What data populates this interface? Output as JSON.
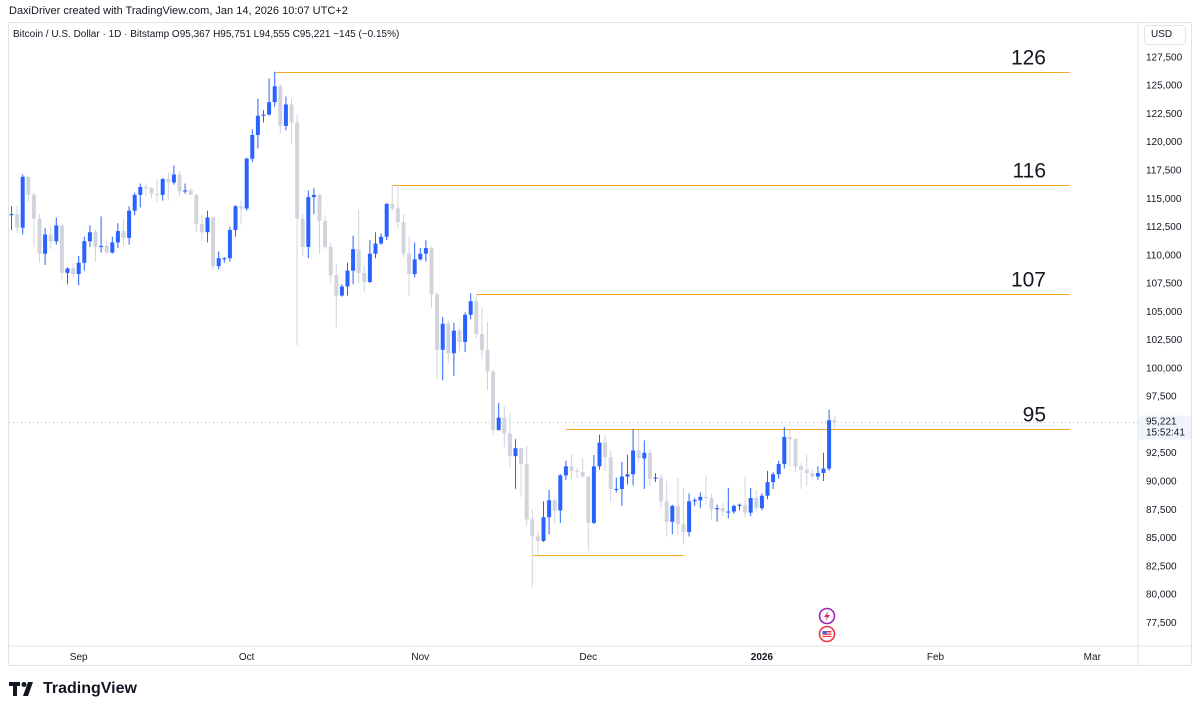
{
  "header": {
    "credit": "DaxiDriver created with TradingView.com, Jan 14, 2026 10:07 UTC+2",
    "symbol_line": "Bitcoin / U.S. Dollar · 1D · Bitstamp  O95,367  H95,751  L94,555  C95,221  −145 (−0.15%)",
    "currency": "USD"
  },
  "footer": {
    "logo_text": "TradingView",
    "logo_icon": "tradingview-logo-icon"
  },
  "price_tag": {
    "price": "95,221",
    "countdown": "15:52:41"
  },
  "colors": {
    "up": "#2962ff",
    "down": "#d1d4dc",
    "level": "#f9a825",
    "axis_tag": "#f0f3fa"
  },
  "icons": [
    "lightning-event-icon",
    "us-flag-event-icon"
  ],
  "chart_data": {
    "type": "candlestick",
    "title": "Bitcoin / U.S. Dollar · 1D · Bitstamp",
    "ylim": [
      75500,
      130500
    ],
    "y_ticks": [
      77500,
      80000,
      82500,
      85000,
      87500,
      90000,
      92500,
      95000,
      97500,
      100000,
      102500,
      105000,
      107500,
      110000,
      112500,
      115000,
      117500,
      120000,
      122500,
      125000,
      127500
    ],
    "x_ticks": [
      {
        "label": "Sep",
        "date": "2025-09-01"
      },
      {
        "label": "Oct",
        "date": "2025-10-01"
      },
      {
        "label": "Nov",
        "date": "2025-11-01"
      },
      {
        "label": "Dec",
        "date": "2025-12-01"
      },
      {
        "label": "2026",
        "date": "2026-01-01"
      },
      {
        "label": "Feb",
        "date": "2026-02-01"
      },
      {
        "label": "Mar",
        "date": "2026-03-01"
      }
    ],
    "levels": [
      {
        "label": "126",
        "value": 126200,
        "from": "2025-10-06",
        "to": "2026-02-25"
      },
      {
        "label": "116",
        "value": 116200,
        "from": "2025-10-27",
        "to": "2026-02-25"
      },
      {
        "label": "107",
        "value": 106500,
        "from": "2025-11-11",
        "to": "2026-02-25"
      },
      {
        "label": "95",
        "value": 94600,
        "from": "2025-11-27",
        "to": "2026-02-25"
      },
      {
        "label": "",
        "value": 83500,
        "from": "2025-11-21",
        "to": "2025-12-18"
      }
    ],
    "candles": [
      [
        "2025-08-20",
        113500,
        114300,
        112200,
        113600
      ],
      [
        "2025-08-21",
        113600,
        114300,
        111900,
        112400
      ],
      [
        "2025-08-22",
        112400,
        117100,
        111800,
        116900
      ],
      [
        "2025-08-23",
        116900,
        117000,
        114700,
        115300
      ],
      [
        "2025-08-24",
        115300,
        115500,
        110700,
        113200
      ],
      [
        "2025-08-25",
        113200,
        113600,
        109300,
        110100
      ],
      [
        "2025-08-26",
        110100,
        112400,
        109100,
        111800
      ],
      [
        "2025-08-27",
        111800,
        112500,
        110500,
        111200
      ],
      [
        "2025-08-28",
        111200,
        113300,
        110900,
        112600
      ],
      [
        "2025-08-29",
        112600,
        112700,
        107700,
        108400
      ],
      [
        "2025-08-30",
        108400,
        108900,
        107400,
        108800
      ],
      [
        "2025-08-31",
        108800,
        109200,
        108000,
        108300
      ],
      [
        "2025-09-01",
        108300,
        109900,
        107300,
        109300
      ],
      [
        "2025-09-02",
        109300,
        111600,
        108600,
        111200
      ],
      [
        "2025-09-03",
        111200,
        112600,
        110700,
        112000
      ],
      [
        "2025-09-04",
        112000,
        112200,
        109400,
        110700
      ],
      [
        "2025-09-05",
        110700,
        113400,
        110200,
        110800
      ],
      [
        "2025-09-06",
        110800,
        111200,
        110100,
        110200
      ],
      [
        "2025-09-07",
        110200,
        111600,
        110100,
        111100
      ],
      [
        "2025-09-08",
        111100,
        112800,
        110600,
        112100
      ],
      [
        "2025-09-09",
        112100,
        113200,
        110800,
        111500
      ],
      [
        "2025-09-10",
        111500,
        114300,
        110900,
        113900
      ],
      [
        "2025-09-11",
        113900,
        115500,
        113500,
        115300
      ],
      [
        "2025-09-12",
        115300,
        116300,
        114200,
        116000
      ],
      [
        "2025-09-13",
        116000,
        116300,
        115200,
        115900
      ],
      [
        "2025-09-14",
        115900,
        116000,
        115000,
        115400
      ],
      [
        "2025-09-15",
        115400,
        116700,
        114700,
        115300
      ],
      [
        "2025-09-16",
        115300,
        116800,
        114800,
        116700
      ],
      [
        "2025-09-17",
        116700,
        117300,
        114800,
        116400
      ],
      [
        "2025-09-18",
        116400,
        117900,
        116200,
        117100
      ],
      [
        "2025-09-19",
        117100,
        117400,
        115200,
        115600
      ],
      [
        "2025-09-20",
        115600,
        116300,
        115400,
        115700
      ],
      [
        "2025-09-21",
        115700,
        115900,
        115300,
        115300
      ],
      [
        "2025-09-22",
        115300,
        115400,
        112000,
        112700
      ],
      [
        "2025-09-23",
        112700,
        113500,
        111200,
        112000
      ],
      [
        "2025-09-24",
        112000,
        113900,
        111100,
        113300
      ],
      [
        "2025-09-25",
        113300,
        113400,
        108700,
        109000
      ],
      [
        "2025-09-26",
        109000,
        110300,
        108700,
        109700
      ],
      [
        "2025-09-27",
        109700,
        109800,
        109300,
        109700
      ],
      [
        "2025-09-28",
        109700,
        112500,
        109400,
        112200
      ],
      [
        "2025-09-29",
        112200,
        114400,
        111600,
        114300
      ],
      [
        "2025-09-30",
        114300,
        114800,
        112700,
        114100
      ],
      [
        "2025-10-01",
        114100,
        118600,
        113900,
        118500
      ],
      [
        "2025-10-02",
        118500,
        121100,
        118200,
        120600
      ],
      [
        "2025-10-03",
        120600,
        123800,
        119400,
        122300
      ],
      [
        "2025-10-04",
        122300,
        122800,
        121700,
        122400
      ],
      [
        "2025-10-05",
        122400,
        125600,
        122300,
        123500
      ],
      [
        "2025-10-06",
        123500,
        126200,
        123100,
        124900
      ],
      [
        "2025-10-07",
        124900,
        125100,
        120700,
        121400
      ],
      [
        "2025-10-08",
        121400,
        124000,
        121000,
        123300
      ],
      [
        "2025-10-09",
        123300,
        123800,
        119800,
        121700
      ],
      [
        "2025-10-10",
        121700,
        122400,
        102000,
        113200
      ],
      [
        "2025-10-11",
        113200,
        113600,
        109900,
        110700
      ],
      [
        "2025-10-12",
        110700,
        115700,
        109700,
        115100
      ],
      [
        "2025-10-13",
        115100,
        115900,
        113600,
        115300
      ],
      [
        "2025-10-14",
        115300,
        115400,
        110100,
        113000
      ],
      [
        "2025-10-15",
        113000,
        113500,
        110500,
        110700
      ],
      [
        "2025-10-16",
        110700,
        111100,
        107500,
        108200
      ],
      [
        "2025-10-17",
        108200,
        109200,
        103600,
        106400
      ],
      [
        "2025-10-18",
        106400,
        107400,
        106300,
        107200
      ],
      [
        "2025-10-19",
        107200,
        109300,
        106400,
        108600
      ],
      [
        "2025-10-20",
        108600,
        111700,
        107400,
        110500
      ],
      [
        "2025-10-21",
        110500,
        114000,
        107500,
        108400
      ],
      [
        "2025-10-22",
        108400,
        109100,
        106700,
        107600
      ],
      [
        "2025-10-23",
        107600,
        111300,
        107500,
        110100
      ],
      [
        "2025-10-24",
        110100,
        112000,
        109700,
        111000
      ],
      [
        "2025-10-25",
        111000,
        111900,
        110900,
        111600
      ],
      [
        "2025-10-26",
        111600,
        114600,
        111300,
        114500
      ],
      [
        "2025-10-27",
        114500,
        116200,
        113900,
        114100
      ],
      [
        "2025-10-28",
        114100,
        116000,
        112300,
        112900
      ],
      [
        "2025-10-29",
        112900,
        113600,
        109800,
        110100
      ],
      [
        "2025-10-30",
        110100,
        111600,
        106400,
        108300
      ],
      [
        "2025-10-31",
        108300,
        111100,
        108000,
        109600
      ],
      [
        "2025-11-01",
        109600,
        110600,
        109500,
        110100
      ],
      [
        "2025-11-02",
        110100,
        111300,
        109400,
        110600
      ],
      [
        "2025-11-03",
        110600,
        110700,
        105300,
        106500
      ],
      [
        "2025-11-04",
        106500,
        106700,
        99000,
        101600
      ],
      [
        "2025-11-05",
        101600,
        104500,
        98900,
        103900
      ],
      [
        "2025-11-06",
        103900,
        104200,
        100400,
        101300
      ],
      [
        "2025-11-07",
        101300,
        104000,
        99300,
        103300
      ],
      [
        "2025-11-08",
        103300,
        103500,
        101500,
        102300
      ],
      [
        "2025-11-09",
        102300,
        104900,
        101400,
        104700
      ],
      [
        "2025-11-10",
        104700,
        106600,
        104300,
        105900
      ],
      [
        "2025-11-11",
        105900,
        106500,
        102600,
        103000
      ],
      [
        "2025-11-12",
        103000,
        105300,
        100800,
        101600
      ],
      [
        "2025-11-13",
        101600,
        104100,
        98000,
        99700
      ],
      [
        "2025-11-14",
        99700,
        99800,
        94000,
        94500
      ],
      [
        "2025-11-15",
        94500,
        96900,
        94500,
        95600
      ],
      [
        "2025-11-16",
        95600,
        96600,
        93000,
        94200
      ],
      [
        "2025-11-17",
        94200,
        96000,
        91200,
        92200
      ],
      [
        "2025-11-18",
        92200,
        93700,
        89300,
        92900
      ],
      [
        "2025-11-19",
        92900,
        92900,
        88600,
        91500
      ],
      [
        "2025-11-20",
        91500,
        93100,
        86100,
        86600
      ],
      [
        "2025-11-21",
        86600,
        87500,
        80600,
        85100
      ],
      [
        "2025-11-22",
        85100,
        85600,
        83500,
        84700
      ],
      [
        "2025-11-23",
        84700,
        88200,
        84600,
        86800
      ],
      [
        "2025-11-24",
        86800,
        89200,
        85300,
        88300
      ],
      [
        "2025-11-25",
        88300,
        88400,
        86200,
        87400
      ],
      [
        "2025-11-26",
        87400,
        90600,
        86300,
        90500
      ],
      [
        "2025-11-27",
        90500,
        91800,
        90100,
        91300
      ],
      [
        "2025-11-28",
        91300,
        92400,
        90200,
        90900
      ],
      [
        "2025-11-29",
        90900,
        91200,
        90300,
        90800
      ],
      [
        "2025-11-30",
        90800,
        92000,
        90300,
        90400
      ],
      [
        "2025-12-01",
        90400,
        90400,
        83800,
        86300
      ],
      [
        "2025-12-02",
        86300,
        92300,
        86200,
        91300
      ],
      [
        "2025-12-03",
        91300,
        94100,
        91000,
        93400
      ],
      [
        "2025-12-04",
        93400,
        94100,
        90900,
        92100
      ],
      [
        "2025-12-05",
        92100,
        92700,
        88100,
        89300
      ],
      [
        "2025-12-06",
        89300,
        90300,
        89000,
        89300
      ],
      [
        "2025-12-07",
        89300,
        91700,
        87800,
        90400
      ],
      [
        "2025-12-08",
        90400,
        92300,
        89700,
        90600
      ],
      [
        "2025-12-09",
        90600,
        94600,
        89600,
        92700
      ],
      [
        "2025-12-10",
        92700,
        94500,
        91600,
        92000
      ],
      [
        "2025-12-11",
        92000,
        93600,
        89300,
        92500
      ],
      [
        "2025-12-12",
        92500,
        92800,
        89500,
        90200
      ],
      [
        "2025-12-13",
        90200,
        90700,
        89900,
        90300
      ],
      [
        "2025-12-14",
        90300,
        90600,
        87600,
        88200
      ],
      [
        "2025-12-15",
        88200,
        90000,
        85100,
        86400
      ],
      [
        "2025-12-16",
        86400,
        87900,
        85300,
        87800
      ],
      [
        "2025-12-17",
        87800,
        90300,
        85300,
        86200
      ],
      [
        "2025-12-18",
        86200,
        89400,
        84400,
        85500
      ],
      [
        "2025-12-19",
        85500,
        88900,
        85100,
        88200
      ],
      [
        "2025-12-20",
        88200,
        88500,
        87800,
        88300
      ],
      [
        "2025-12-21",
        88300,
        89000,
        87600,
        88600
      ],
      [
        "2025-12-22",
        88600,
        90500,
        87900,
        88500
      ],
      [
        "2025-12-23",
        88500,
        88900,
        86600,
        87500
      ],
      [
        "2025-12-24",
        87500,
        87900,
        86400,
        87600
      ],
      [
        "2025-12-25",
        87600,
        88100,
        86900,
        87300
      ],
      [
        "2025-12-26",
        87300,
        89400,
        86700,
        87300
      ],
      [
        "2025-12-27",
        87300,
        87900,
        87100,
        87800
      ],
      [
        "2025-12-28",
        87800,
        88000,
        87400,
        87900
      ],
      [
        "2025-12-29",
        87900,
        90400,
        86800,
        87200
      ],
      [
        "2025-12-30",
        87200,
        89400,
        86900,
        88500
      ],
      [
        "2025-12-31",
        88500,
        89200,
        87300,
        87600
      ],
      [
        "2026-01-01",
        87600,
        88900,
        87400,
        88700
      ],
      [
        "2026-01-02",
        88700,
        90900,
        88400,
        89900
      ],
      [
        "2026-01-03",
        89900,
        90800,
        89300,
        90600
      ],
      [
        "2026-01-04",
        90600,
        91800,
        90200,
        91500
      ],
      [
        "2026-01-05",
        91500,
        94800,
        91100,
        93900
      ],
      [
        "2026-01-06",
        93900,
        94500,
        91300,
        93700
      ],
      [
        "2026-01-07",
        93700,
        93800,
        90800,
        91300
      ],
      [
        "2026-01-08",
        91300,
        91600,
        89300,
        91000
      ],
      [
        "2026-01-09",
        91000,
        92300,
        89600,
        90700
      ],
      [
        "2026-01-10",
        90700,
        91000,
        90200,
        90400
      ],
      [
        "2026-01-11",
        90400,
        91300,
        90100,
        90700
      ],
      [
        "2026-01-12",
        90700,
        92500,
        90000,
        91100
      ],
      [
        "2026-01-13",
        91100,
        96300,
        90900,
        95367
      ],
      [
        "2026-01-14",
        95367,
        95751,
        94555,
        95221
      ]
    ]
  }
}
